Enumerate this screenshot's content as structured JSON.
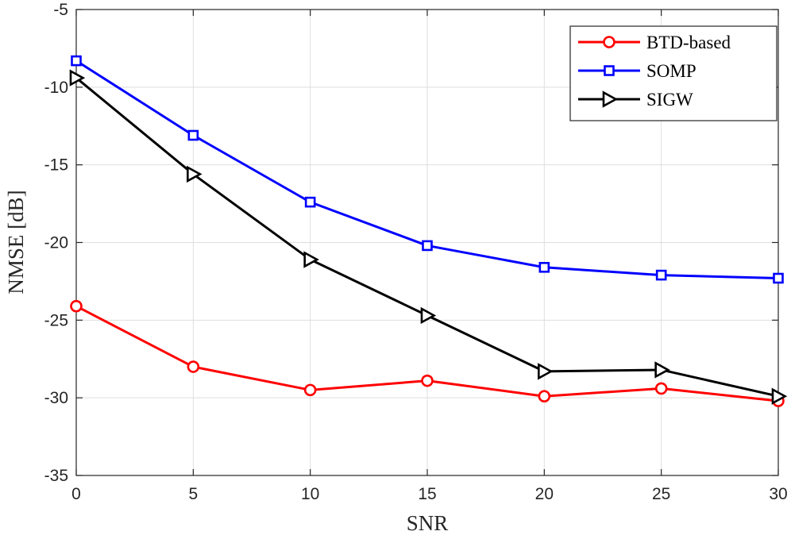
{
  "chart_data": {
    "type": "line",
    "title": "",
    "xlabel": "SNR",
    "ylabel": "NMSE [dB]",
    "xlim": [
      0,
      30
    ],
    "ylim": [
      -35,
      -5
    ],
    "xticks": [
      0,
      5,
      10,
      15,
      20,
      25,
      30
    ],
    "yticks": [
      -35,
      -30,
      -25,
      -20,
      -15,
      -10,
      -5
    ],
    "x": [
      0,
      5,
      10,
      15,
      20,
      25,
      30
    ],
    "grid": true,
    "legend_position": "top-right",
    "series": [
      {
        "name": "BTD-based",
        "color": "#ff0000",
        "marker": "circle",
        "values": [
          -24.1,
          -28.0,
          -29.5,
          -28.9,
          -29.9,
          -29.4,
          -30.2
        ]
      },
      {
        "name": "SOMP",
        "color": "#0000ff",
        "marker": "square",
        "values": [
          -8.3,
          -13.1,
          -17.4,
          -20.2,
          -21.6,
          -22.1,
          -22.3
        ]
      },
      {
        "name": "SIGW",
        "color": "#000000",
        "marker": "triangle-right",
        "values": [
          -9.4,
          -15.6,
          -21.1,
          -24.7,
          -28.3,
          -28.2,
          -29.9
        ]
      }
    ]
  }
}
